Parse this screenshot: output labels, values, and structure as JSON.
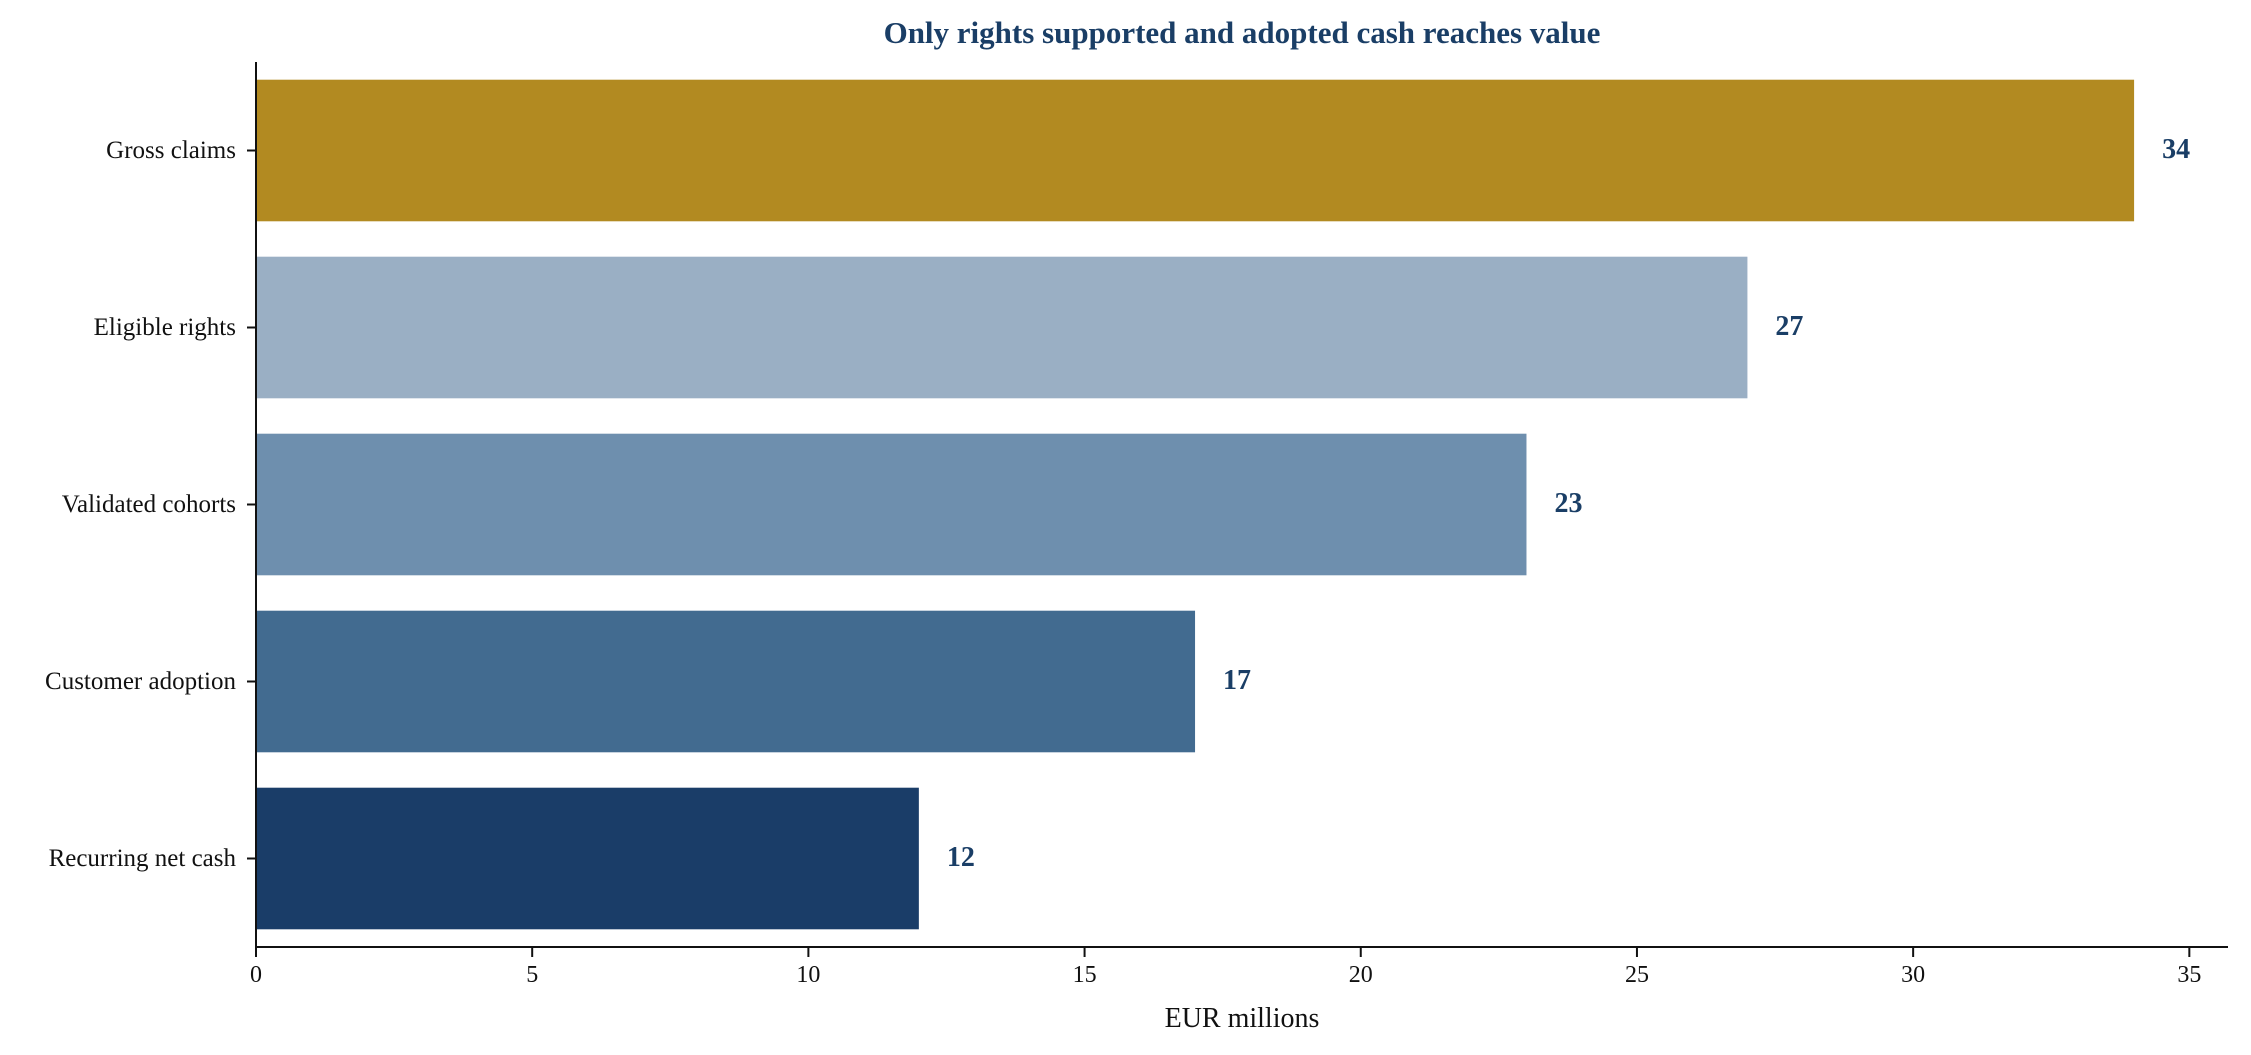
{
  "chart_data": {
    "type": "bar",
    "orientation": "horizontal",
    "title": "Only rights supported and adopted cash reaches value",
    "xlabel": "EUR millions",
    "ylabel": "",
    "xlim": [
      0,
      35.7
    ],
    "xticks": [
      0,
      5,
      10,
      15,
      20,
      25,
      30,
      35
    ],
    "grid": false,
    "categories": [
      "Gross claims",
      "Eligible rights",
      "Validated cohorts",
      "Customer adoption",
      "Recurring net cash"
    ],
    "values": [
      34,
      27,
      23,
      17,
      12
    ],
    "value_labels": [
      "34",
      "27",
      "23",
      "17",
      "12"
    ],
    "bar_colors": [
      "#b28a21",
      "#9aafc4",
      "#6e8fae",
      "#426b90",
      "#1a3d68"
    ]
  }
}
